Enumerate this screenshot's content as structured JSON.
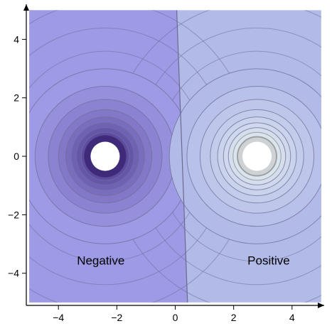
{
  "chart_data": {
    "type": "contour",
    "title": "",
    "xlabel": "",
    "ylabel": "",
    "xlim": [
      -5.1,
      5.1
    ],
    "ylim": [
      -5.1,
      5.2
    ],
    "x_ticks": [
      -4,
      -2,
      0,
      2,
      4
    ],
    "y_ticks": [
      -4,
      -2,
      0,
      2,
      4
    ],
    "x_tick_labels": [
      "−4",
      "−2",
      "0",
      "2",
      "4"
    ],
    "y_tick_labels": [
      "−4",
      "−2",
      "0",
      "2",
      "4"
    ],
    "plot_region": {
      "x": [
        -5,
        5
      ],
      "y": [
        -5,
        5
      ]
    },
    "sources": [
      {
        "name": "negative-charge",
        "x": -2.4,
        "y": 0,
        "hole_radius": 0.5,
        "ring_radii": [
          0.55,
          0.68,
          0.82,
          0.98,
          1.15,
          1.35,
          1.6,
          1.95,
          2.4,
          3.0
        ],
        "color": "#4f3d97"
      },
      {
        "name": "positive-charge",
        "x": 2.8,
        "y": 0,
        "hole_radius": 0.5,
        "ring_radii": [
          0.55,
          0.68,
          0.82,
          0.98,
          1.15,
          1.35,
          1.6,
          1.95,
          2.4,
          3.0
        ],
        "color": "#e3eef0"
      }
    ],
    "labels": [
      {
        "text": "Negative",
        "x": -2.55,
        "y": -3.7
      },
      {
        "text": "Positive",
        "x": 3.2,
        "y": -3.7
      }
    ],
    "colors": {
      "negative_bg": "#9e9ae6",
      "positive_bg": "#b2bbe8",
      "contour": "#6f6f9a",
      "divider": "#6a6a8e"
    }
  }
}
